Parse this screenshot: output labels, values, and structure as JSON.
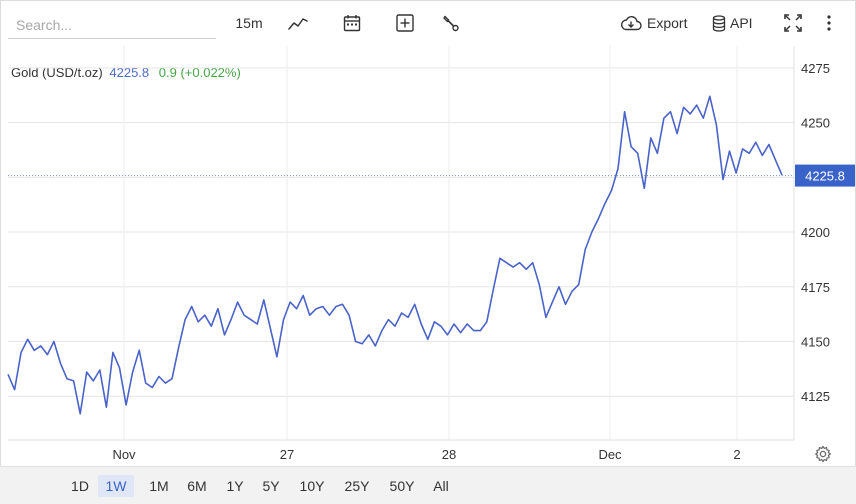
{
  "toolbar": {
    "search_placeholder": "Search...",
    "interval_label": "15m",
    "line_icon": "line-chart-icon",
    "calendar_icon": "calendar-icon",
    "add_icon": "plus-square-icon",
    "settings_icon": "wrench-icon",
    "export_label": "Export",
    "export_icon": "cloud-download-icon",
    "api_label": "API",
    "api_icon": "database-icon",
    "fullscreen_icon": "expand-icon",
    "more_icon": "vertical-dots-icon"
  },
  "legend": {
    "name": "Gold (USD/t.oz)",
    "price": "4225.8",
    "change": "0.9 (+0.022%)"
  },
  "ranges": [
    "1D",
    "1W",
    "1M",
    "6M",
    "1Y",
    "5Y",
    "10Y",
    "25Y",
    "50Y",
    "All"
  ],
  "active_range": "1W",
  "colors": {
    "line": "#4a63c9",
    "accent": "#3a63c9",
    "change_positive": "#46a546"
  },
  "chart_data": {
    "type": "line",
    "title": "",
    "xlabel": "",
    "ylabel": "",
    "x_tick_labels": [
      "Nov",
      "27",
      "28",
      "Dec",
      "2"
    ],
    "y_tick_labels": [
      "4125",
      "4150",
      "4175",
      "4200",
      "4225",
      "4250",
      "4275"
    ],
    "ylim": [
      4105,
      4285
    ],
    "last_value": 4225.8,
    "last_value_label": "4225.8",
    "grid": true,
    "series": [
      {
        "points": [
          {
            "x": "Nov 25 08:00",
            "y": 4135
          },
          {
            "x": "Nov 25 09:00",
            "y": 4128
          },
          {
            "x": "Nov 25 10:00",
            "y": 4145
          },
          {
            "x": "Nov 25 11:00",
            "y": 4151
          },
          {
            "x": "Nov 25 12:00",
            "y": 4146
          },
          {
            "x": "Nov 25 13:00",
            "y": 4148
          },
          {
            "x": "Nov 25 14:00",
            "y": 4144
          },
          {
            "x": "Nov 25 15:00",
            "y": 4150
          },
          {
            "x": "Nov 25 16:00",
            "y": 4140
          },
          {
            "x": "Nov 25 17:00",
            "y": 4133
          },
          {
            "x": "Nov 25 18:00",
            "y": 4132
          },
          {
            "x": "Nov 25 19:00",
            "y": 4117
          },
          {
            "x": "Nov 25 20:00",
            "y": 4136
          },
          {
            "x": "Nov 25 21:00",
            "y": 4132
          },
          {
            "x": "Nov 25 22:00",
            "y": 4137
          },
          {
            "x": "Nov 25 23:00",
            "y": 4120
          },
          {
            "x": "Nov 26 00:00",
            "y": 4145
          },
          {
            "x": "Nov 26 01:00",
            "y": 4138
          },
          {
            "x": "Nov 26 02:00",
            "y": 4121
          },
          {
            "x": "Nov 26 03:00",
            "y": 4136
          },
          {
            "x": "Nov 26 04:00",
            "y": 4146
          },
          {
            "x": "Nov 26 05:00",
            "y": 4131
          },
          {
            "x": "Nov 26 06:00",
            "y": 4129
          },
          {
            "x": "Nov 26 07:00",
            "y": 4134
          },
          {
            "x": "Nov 26 08:00",
            "y": 4131
          },
          {
            "x": "Nov 26 09:00",
            "y": 4133
          },
          {
            "x": "Nov 26 10:00",
            "y": 4147
          },
          {
            "x": "Nov 26 11:00",
            "y": 4160
          },
          {
            "x": "Nov 26 12:00",
            "y": 4166
          },
          {
            "x": "Nov 26 13:00",
            "y": 4159
          },
          {
            "x": "Nov 26 14:00",
            "y": 4162
          },
          {
            "x": "Nov 26 15:00",
            "y": 4157
          },
          {
            "x": "Nov 26 16:00",
            "y": 4165
          },
          {
            "x": "Nov 26 17:00",
            "y": 4153
          },
          {
            "x": "Nov 26 18:00",
            "y": 4160
          },
          {
            "x": "Nov 26 19:00",
            "y": 4168
          },
          {
            "x": "Nov 26 20:00",
            "y": 4162
          },
          {
            "x": "Nov 26 21:00",
            "y": 4160
          },
          {
            "x": "Nov 26 22:00",
            "y": 4158
          },
          {
            "x": "Nov 26 23:00",
            "y": 4169
          },
          {
            "x": "Nov 27 00:00",
            "y": 4156
          },
          {
            "x": "Nov 27 01:00",
            "y": 4143
          },
          {
            "x": "Nov 27 02:00",
            "y": 4160
          },
          {
            "x": "Nov 27 03:00",
            "y": 4168
          },
          {
            "x": "Nov 27 04:00",
            "y": 4165
          },
          {
            "x": "Nov 27 05:00",
            "y": 4171
          },
          {
            "x": "Nov 27 06:00",
            "y": 4162
          },
          {
            "x": "Nov 27 07:00",
            "y": 4165
          },
          {
            "x": "Nov 27 08:00",
            "y": 4166
          },
          {
            "x": "Nov 27 09:00",
            "y": 4162
          },
          {
            "x": "Nov 27 10:00",
            "y": 4166
          },
          {
            "x": "Nov 27 11:00",
            "y": 4167
          },
          {
            "x": "Nov 27 12:00",
            "y": 4162
          },
          {
            "x": "Nov 27 13:00",
            "y": 4150
          },
          {
            "x": "Nov 27 14:00",
            "y": 4149
          },
          {
            "x": "Nov 27 15:00",
            "y": 4153
          },
          {
            "x": "Nov 27 16:00",
            "y": 4148
          },
          {
            "x": "Nov 27 17:00",
            "y": 4155
          },
          {
            "x": "Nov 27 18:00",
            "y": 4160
          },
          {
            "x": "Nov 27 19:00",
            "y": 4157
          },
          {
            "x": "Nov 27 20:00",
            "y": 4163
          },
          {
            "x": "Nov 27 21:00",
            "y": 4161
          },
          {
            "x": "Nov 27 22:00",
            "y": 4167
          },
          {
            "x": "Nov 27 23:00",
            "y": 4158
          },
          {
            "x": "Nov 28 00:00",
            "y": 4151
          },
          {
            "x": "Nov 28 01:00",
            "y": 4159
          },
          {
            "x": "Nov 28 02:00",
            "y": 4157
          },
          {
            "x": "Nov 28 03:00",
            "y": 4153
          },
          {
            "x": "Nov 28 04:00",
            "y": 4158
          },
          {
            "x": "Nov 28 05:00",
            "y": 4154
          },
          {
            "x": "Nov 28 06:00",
            "y": 4158
          },
          {
            "x": "Nov 28 07:00",
            "y": 4155
          },
          {
            "x": "Nov 28 08:00",
            "y": 4155
          },
          {
            "x": "Nov 28 09:00",
            "y": 4159
          },
          {
            "x": "Nov 28 10:00",
            "y": 4174
          },
          {
            "x": "Nov 28 11:00",
            "y": 4188
          },
          {
            "x": "Nov 28 12:00",
            "y": 4186
          },
          {
            "x": "Nov 28 13:00",
            "y": 4184
          },
          {
            "x": "Nov 28 14:00",
            "y": 4186
          },
          {
            "x": "Nov 28 15:00",
            "y": 4183
          },
          {
            "x": "Nov 28 16:00",
            "y": 4186
          },
          {
            "x": "Nov 28 17:00",
            "y": 4176
          },
          {
            "x": "Nov 28 18:00",
            "y": 4161
          },
          {
            "x": "Nov 28 19:00",
            "y": 4168
          },
          {
            "x": "Nov 28 20:00",
            "y": 4175
          },
          {
            "x": "Nov 28 21:00",
            "y": 4167
          },
          {
            "x": "Nov 28 22:00",
            "y": 4173
          },
          {
            "x": "Nov 28 23:00",
            "y": 4176
          },
          {
            "x": "Dec 1 00:00",
            "y": 4192
          },
          {
            "x": "Dec 1 01:00",
            "y": 4200
          },
          {
            "x": "Dec 1 02:00",
            "y": 4206
          },
          {
            "x": "Dec 1 03:00",
            "y": 4213
          },
          {
            "x": "Dec 1 04:00",
            "y": 4219
          },
          {
            "x": "Dec 1 05:00",
            "y": 4229
          },
          {
            "x": "Dec 1 06:00",
            "y": 4255
          },
          {
            "x": "Dec 1 07:00",
            "y": 4239
          },
          {
            "x": "Dec 1 08:00",
            "y": 4236
          },
          {
            "x": "Dec 1 09:00",
            "y": 4220
          },
          {
            "x": "Dec 1 10:00",
            "y": 4243
          },
          {
            "x": "Dec 1 11:00",
            "y": 4236
          },
          {
            "x": "Dec 1 12:00",
            "y": 4252
          },
          {
            "x": "Dec 1 13:00",
            "y": 4255
          },
          {
            "x": "Dec 1 14:00",
            "y": 4245
          },
          {
            "x": "Dec 1 15:00",
            "y": 4257
          },
          {
            "x": "Dec 1 16:00",
            "y": 4254
          },
          {
            "x": "Dec 1 17:00",
            "y": 4258
          },
          {
            "x": "Dec 1 18:00",
            "y": 4252
          },
          {
            "x": "Dec 1 19:00",
            "y": 4262
          },
          {
            "x": "Dec 1 20:00",
            "y": 4249
          },
          {
            "x": "Dec 1 21:00",
            "y": 4224
          },
          {
            "x": "Dec 1 22:00",
            "y": 4237
          },
          {
            "x": "Dec 1 23:00",
            "y": 4227
          },
          {
            "x": "Dec 2 00:00",
            "y": 4238
          },
          {
            "x": "Dec 2 01:00",
            "y": 4236
          },
          {
            "x": "Dec 2 02:00",
            "y": 4241
          },
          {
            "x": "Dec 2 03:00",
            "y": 4235
          },
          {
            "x": "Dec 2 04:00",
            "y": 4240
          },
          {
            "x": "Dec 2 05:00",
            "y": 4233
          },
          {
            "x": "Dec 2 06:00",
            "y": 4226
          }
        ]
      }
    ]
  }
}
